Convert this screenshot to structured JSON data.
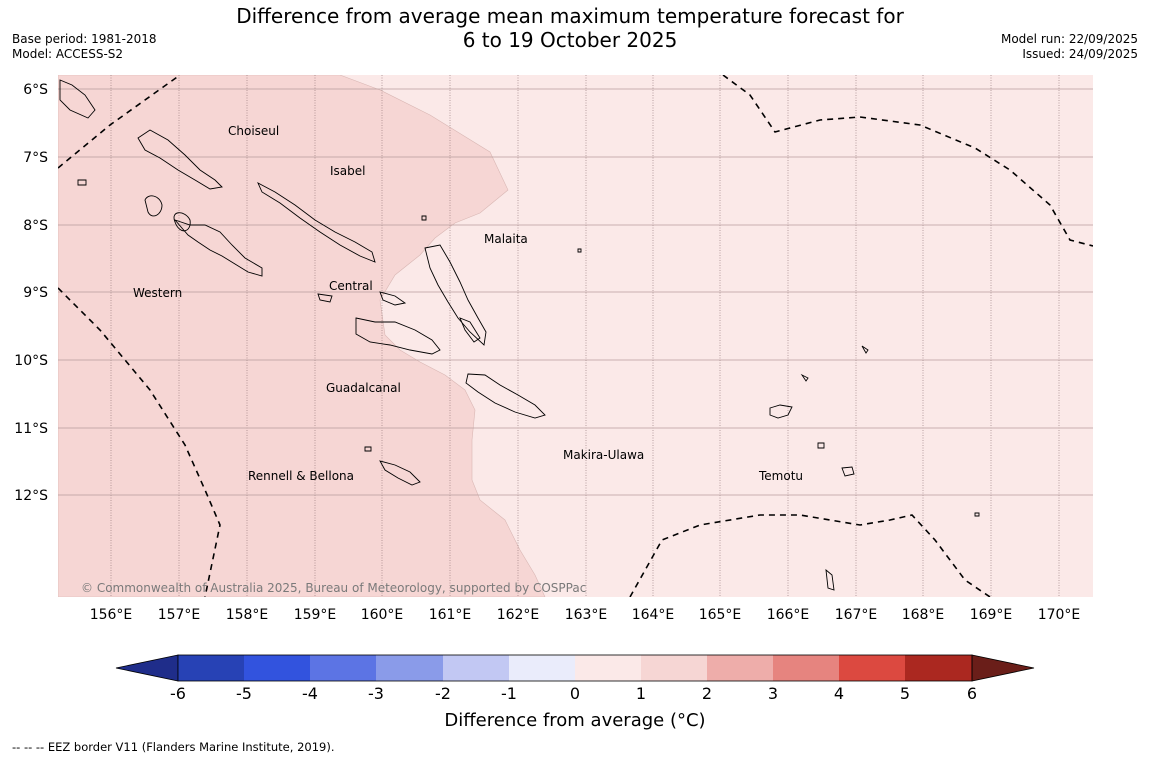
{
  "header": {
    "base_period": "Base period: 1981-2018",
    "model": "Model: ACCESS-S2",
    "title_line1": "Difference from average mean maximum temperature forecast for",
    "title_line2": "6 to 19 October 2025",
    "model_run": "Model run: 22/09/2025",
    "issued": "Issued: 24/09/2025"
  },
  "map": {
    "latitude_labels": [
      "6°S",
      "7°S",
      "8°S",
      "9°S",
      "10°S",
      "11°S",
      "12°S"
    ],
    "longitude_labels": [
      "156°E",
      "157°E",
      "158°E",
      "159°E",
      "160°E",
      "161°E",
      "162°E",
      "163°E",
      "164°E",
      "165°E",
      "166°E",
      "167°E",
      "168°E",
      "169°E",
      "170°E"
    ],
    "provinces": [
      "Choiseul",
      "Isabel",
      "Malaita",
      "Western",
      "Central",
      "Guadalcanal",
      "Makira-Ulawa",
      "Rennell & Bellona",
      "Temotu"
    ],
    "copyright": "© Commonwealth of Australia 2025, Bureau of Meteorology, supported by COSPPac",
    "region_colors": {
      "zone_1_to_2": "#f6d6d4",
      "zone_0_to_1": "#fbe9e8"
    }
  },
  "colorbar": {
    "title": "Difference from average (°C)",
    "tick_labels": [
      "-6",
      "-5",
      "-4",
      "-3",
      "-2",
      "-1",
      "0",
      "1",
      "2",
      "3",
      "4",
      "5",
      "6"
    ],
    "colors": [
      "#1f2d8a",
      "#2742b5",
      "#3253de",
      "#5c74e4",
      "#8a9be9",
      "#c2c8f3",
      "#eaecfb",
      "#fbe9e8",
      "#f6d6d4",
      "#eeadaa",
      "#e6847f",
      "#dc4940",
      "#ab2820",
      "#6a1e19"
    ]
  },
  "footnote": "--  --  -- EEZ border V11 (Flanders Marine Institute, 2019)."
}
